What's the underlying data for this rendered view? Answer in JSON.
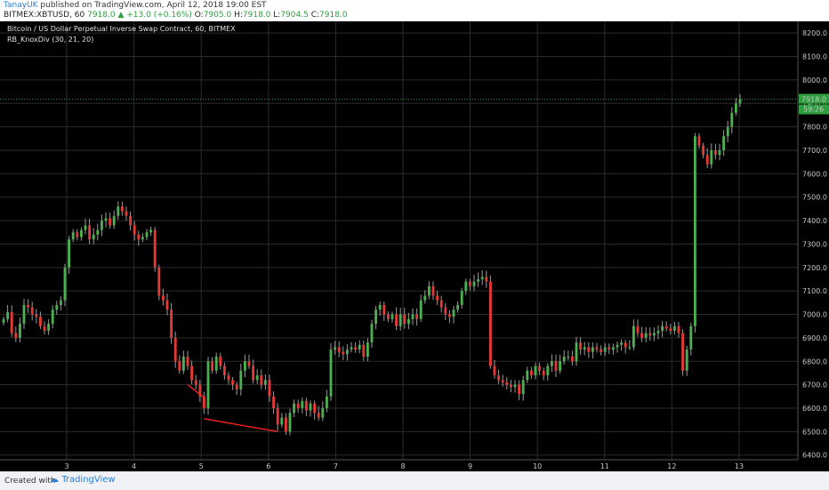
{
  "header": {
    "author": "TanayUK",
    "published_text": " published on TradingView.com, April 12, 2018 19:00 EST",
    "symbol_line": "BITMEX:XBTUSD, 60",
    "price": "7918.0",
    "change": "▲ +13.0 (+0.16%)",
    "o_label": "O:",
    "o_value": "7905.0",
    "h_label": "H:",
    "h_value": "7918.0",
    "l_label": "L:",
    "l_value": "7904.5",
    "c_label": "C:",
    "c_value": "7918.0"
  },
  "legend": {
    "title": "Bitcoin / US Dollar Perpetual Inverse Swap Contract, 60, BITMEX",
    "indicator": "RB_KnoxDiv (30, 21, 20)"
  },
  "footer": {
    "created_with": "Created with",
    "brand": "TradingView"
  },
  "colors": {
    "background": "#000000",
    "up": "#4caf50",
    "down": "#e53935",
    "grid": "#2b2b2b",
    "divergence": "#ff2020",
    "price_line": "#2e9e3e"
  },
  "chart_data": {
    "type": "candlestick",
    "x_ticks": [
      "3",
      "4",
      "5",
      "6",
      "7",
      "8",
      "9",
      "10",
      "11",
      "12",
      "13"
    ],
    "ylim": [
      6380,
      8250
    ],
    "y_ticks": [
      "6400.0",
      "6500.0",
      "6600.0",
      "6700.0",
      "6800.0",
      "6900.0",
      "7000.0",
      "7100.0",
      "7200.0",
      "7300.0",
      "7400.0",
      "7500.0",
      "7600.0",
      "7700.0",
      "7800.0",
      "7900.0",
      "8000.0",
      "8100.0",
      "8200.0"
    ],
    "last_price_label": "7918.0",
    "countdown_label": "59:26",
    "grid": true,
    "close_series": [
      6980,
      7010,
      6920,
      6900,
      6960,
      7040,
      7030,
      7000,
      6990,
      6950,
      6930,
      6960,
      7020,
      7040,
      7060,
      7200,
      7320,
      7350,
      7330,
      7360,
      7380,
      7320,
      7340,
      7360,
      7400,
      7410,
      7380,
      7420,
      7460,
      7440,
      7420,
      7380,
      7340,
      7320,
      7330,
      7350,
      7360,
      7200,
      7080,
      7060,
      7020,
      6900,
      6800,
      6760,
      6820,
      6780,
      6720,
      6700,
      6650,
      6600,
      6800,
      6760,
      6820,
      6780,
      6740,
      6720,
      6700,
      6680,
      6760,
      6800,
      6780,
      6720,
      6740,
      6700,
      6720,
      6650,
      6600,
      6530,
      6560,
      6500,
      6580,
      6620,
      6600,
      6630,
      6590,
      6620,
      6580,
      6560,
      6600,
      6650,
      6850,
      6860,
      6840,
      6830,
      6850,
      6860,
      6850,
      6870,
      6820,
      6880,
      6960,
      7020,
      7040,
      7000,
      6980,
      7000,
      6950,
      7000,
      6960,
      6980,
      7000,
      6980,
      7060,
      7080,
      7120,
      7080,
      7060,
      7030,
      7000,
      6990,
      7020,
      7040,
      7100,
      7140,
      7120,
      7140,
      7150,
      7160,
      7140,
      6780,
      6740,
      6720,
      6710,
      6700,
      6690,
      6700,
      6660,
      6720,
      6760,
      6740,
      6780,
      6760,
      6740,
      6780,
      6800,
      6760,
      6800,
      6820,
      6820,
      6800,
      6880,
      6850,
      6860,
      6840,
      6860,
      6850,
      6840,
      6860,
      6850,
      6860,
      6870,
      6880,
      6860,
      6860,
      6950,
      6920,
      6900,
      6920,
      6910,
      6920,
      6930,
      6950,
      6940,
      6930,
      6950,
      6920,
      6760,
      6850,
      6950,
      7760,
      7720,
      7680,
      7640,
      7700,
      7680,
      7700,
      7760,
      7800,
      7860,
      7900,
      7918
    ]
  }
}
